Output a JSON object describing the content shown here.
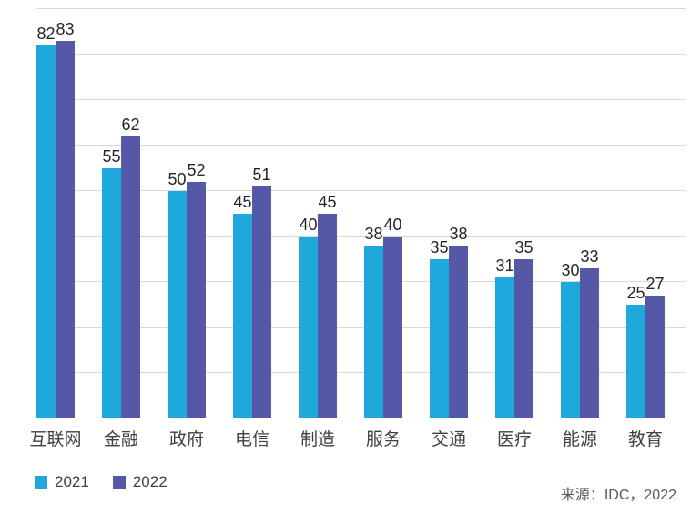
{
  "chart_data": {
    "type": "bar",
    "categories": [
      "互联网",
      "金融",
      "政府",
      "电信",
      "制造",
      "服务",
      "交通",
      "医疗",
      "能源",
      "教育"
    ],
    "series": [
      {
        "name": "2021",
        "color": "#1FA8DC",
        "values": [
          82,
          55,
          50,
          45,
          40,
          38,
          35,
          31,
          30,
          25
        ]
      },
      {
        "name": "2022",
        "color": "#5558A6",
        "values": [
          83,
          62,
          52,
          51,
          45,
          40,
          38,
          35,
          33,
          27
        ]
      }
    ],
    "title": "",
    "xlabel": "",
    "ylabel": "",
    "ylim": [
      0,
      90
    ],
    "gridline_step": 10,
    "grid": true,
    "legend_position": "bottom-left",
    "value_labels_shown": true,
    "y_axis_labels_shown": false
  },
  "legend": {
    "items": [
      {
        "label": "2021",
        "color": "#1FA8DC"
      },
      {
        "label": "2022",
        "color": "#5558A6"
      }
    ]
  },
  "source_note": "来源：IDC，2022",
  "colors": {
    "background": "#FFFFFF",
    "gridline": "#D9D9D9",
    "value_label": "#262626",
    "category_label": "#404040",
    "legend_text": "#404040",
    "source_text": "#595959"
  }
}
